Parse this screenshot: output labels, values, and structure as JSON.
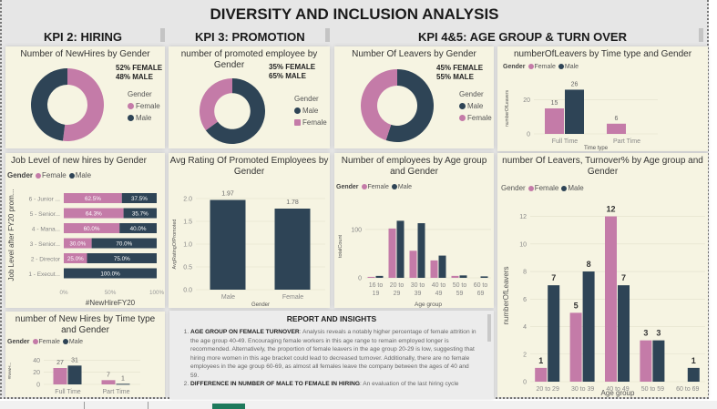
{
  "page_title": "DIVERSITY AND INCLUSION ANALYSIS",
  "kpi_headers": [
    "KPI 2: HIRING",
    "KPI 3: PROMOTION",
    "KPI 4&5: AGE GROUP & TURN OVER"
  ],
  "colors": {
    "female": "#c47ba8",
    "male": "#2e4456",
    "panel_bg": "#f6f4e2",
    "canvas_bg": "#e6e6e6"
  },
  "legend": {
    "title": "Gender",
    "female": "Female",
    "male": "Male"
  },
  "newhires_gender": {
    "title": "Number of NewHires by Gender",
    "pct_female": "52% FEMALE",
    "pct_male": "48% MALE",
    "legend_order": [
      "Female",
      "Male"
    ]
  },
  "promoted_gender": {
    "title_l1": "number of promoted employee by",
    "title_l2": "Gender",
    "pct_female": "35% FEMALE",
    "pct_male": "65% MALE",
    "legend_order": [
      "Male",
      "Female"
    ]
  },
  "leavers_gender": {
    "title": "Number Of Leavers by Gender",
    "pct_female": "45% FEMALE",
    "pct_male": "55% MALE",
    "legend_order": [
      "Male",
      "Female"
    ]
  },
  "chart_data": [
    {
      "id": "newhires_gender_donut",
      "type": "pie",
      "title": "Number of NewHires by Gender",
      "labels": [
        "Female",
        "Male"
      ],
      "values": [
        52,
        48
      ]
    },
    {
      "id": "promoted_gender_donut",
      "type": "pie",
      "title": "number of promoted employee by Gender",
      "labels": [
        "Female",
        "Male"
      ],
      "values": [
        35,
        65
      ]
    },
    {
      "id": "leavers_gender_donut",
      "type": "pie",
      "title": "Number Of Leavers by Gender",
      "labels": [
        "Female",
        "Male"
      ],
      "values": [
        45,
        55
      ]
    },
    {
      "id": "leavers_timetype",
      "type": "bar",
      "title": "numberOfLeavers by Time type and Gender",
      "categories": [
        "Full Time",
        "Part Time"
      ],
      "series": [
        {
          "name": "Female",
          "values": [
            15,
            6
          ]
        },
        {
          "name": "Male",
          "values": [
            26,
            null
          ]
        }
      ],
      "xlabel": "Time type",
      "ylabel": "numberOfLeavers",
      "yticks": [
        "0",
        "20"
      ],
      "ylim": [
        0,
        30
      ],
      "data_labels": [
        [
          "15",
          "6"
        ],
        [
          "26",
          ""
        ]
      ]
    },
    {
      "id": "joblevel_newhires",
      "type": "bar",
      "orientation": "horizontal-stacked-100",
      "title": "Job Level of new hires by Gender",
      "categories": [
        "6 - Junior ...",
        "5 - Senior...",
        "4 - Mana...",
        "3 - Senior...",
        "2 - Director",
        "1 - Execut..."
      ],
      "series": [
        {
          "name": "Female",
          "values": [
            62.5,
            64.3,
            60.0,
            30.0,
            25.0,
            0
          ]
        },
        {
          "name": "Male",
          "values": [
            37.5,
            35.7,
            40.0,
            70.0,
            75.0,
            100.0
          ]
        }
      ],
      "data_labels": [
        [
          "62.5%",
          "64.3%",
          "60.0%",
          "30.0%",
          "25.0%",
          ""
        ],
        [
          "37.5%",
          "35.7%",
          "40.0%",
          "70.0%",
          "75.0%",
          "100.0%"
        ]
      ],
      "xlabel": "#NewHireFY20",
      "ylabel": "Job Level after FY20 prom...",
      "xticks": [
        "0%",
        "50%",
        "100%"
      ]
    },
    {
      "id": "avg_rating_promoted",
      "type": "bar",
      "title": "Avg Rating Of Promoted Employees by Gender",
      "categories": [
        "Male",
        "Female"
      ],
      "values": [
        1.97,
        1.78
      ],
      "data_labels": [
        "1.97",
        "1.78"
      ],
      "xlabel": "Gender",
      "ylabel": "AvgRatingOfPromoted",
      "yticks": [
        "0.0",
        "0.5",
        "1.0",
        "1.5",
        "2.0"
      ],
      "ylim": [
        0,
        2.0
      ]
    },
    {
      "id": "employees_agegroup",
      "type": "bar",
      "title": "Number of employees by Age group and Gender",
      "categories": [
        "16 to 19",
        "20 to 29",
        "30 to 39",
        "40 to 49",
        "50 to 59",
        "60 to 69"
      ],
      "series": [
        {
          "name": "Female",
          "values": [
            2,
            102,
            56,
            36,
            4,
            0
          ]
        },
        {
          "name": "Male",
          "values": [
            4,
            118,
            113,
            46,
            5,
            3
          ]
        }
      ],
      "xlabel": "Age group",
      "ylabel": "totalCount",
      "yticks": [
        "0",
        "100"
      ],
      "ylim": [
        0,
        130
      ]
    },
    {
      "id": "leavers_agegroup",
      "type": "bar",
      "title": "number Of Leavers, Turnover% by Age group and Gender",
      "categories": [
        "20 to 29",
        "30 to 39",
        "40 to 49",
        "50 to 59",
        "60 to 69"
      ],
      "series": [
        {
          "name": "Female",
          "values": [
            1,
            5,
            12,
            3,
            0
          ]
        },
        {
          "name": "Male",
          "values": [
            7,
            8,
            7,
            3,
            1
          ]
        }
      ],
      "data_labels": [
        [
          "1",
          "5",
          "12",
          "3",
          ""
        ],
        [
          "7",
          "8",
          "7",
          "3",
          "1"
        ]
      ],
      "xlabel": "Age group",
      "ylabel": "numberOfLeavers",
      "yticks": [
        "0",
        "2",
        "4",
        "6",
        "8",
        "10",
        "12"
      ],
      "ylim": [
        0,
        12.5
      ]
    },
    {
      "id": "newhires_timetype",
      "type": "bar",
      "title": "number of New Hires by Time type and Gender",
      "categories": [
        "Full Time",
        "Part Time"
      ],
      "series": [
        {
          "name": "Female",
          "values": [
            27,
            7
          ]
        },
        {
          "name": "Male",
          "values": [
            31,
            1
          ]
        }
      ],
      "data_labels": [
        [
          "27",
          "7"
        ],
        [
          "31",
          "1"
        ]
      ],
      "ylabel": "#NewH...",
      "yticks": [
        "0",
        "20",
        "40"
      ],
      "ylim": [
        0,
        45
      ]
    }
  ],
  "panels": {
    "leavers_timetype_title": "numberOfLeavers by Time type and Gender",
    "joblevel_title": "Job Level of new hires by Gender",
    "avg_rating_title_l1": "Avg Rating Of Promoted Employees by",
    "avg_rating_title_l2": "Gender",
    "emp_age_title_l1": "Number of employees by Age group",
    "emp_age_title_l2": "and Gender",
    "leavers_age_title_l1": "number Of Leavers, Turnover% by Age group and",
    "leavers_age_title_l2": "Gender",
    "newhires_tt_title_l1": "number of New Hires by Time type",
    "newhires_tt_title_l2": "and Gender"
  },
  "report": {
    "title": "REPORT AND INSIGHTS",
    "items": [
      {
        "heading": "AGE GROUP ON FEMALE TURNOVER",
        "text": ": Analysis reveals a notably higher percentage of female attrition in the age group 40-49. Encouraging female workers in this age range to remain employed longer is recommended. Alternatively, the proportion of female leavers in the age group 20-29 is low, suggesting that hiring more women in this age bracket could lead to decreased turnover. Additionally, there are no female employees in the age group 60-69, as almost all females leave the company between the ages of 40 and 59."
      },
      {
        "heading": "DIFFERENCE IN NUMBER OF MALE TO FEMALE IN HIRING",
        "text": ": An evaluation of the last hiring cycle"
      }
    ]
  }
}
